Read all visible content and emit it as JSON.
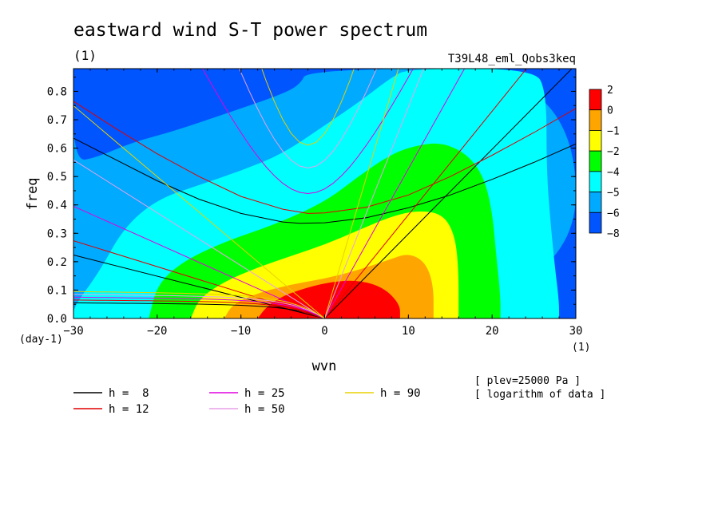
{
  "chart_data": {
    "type": "heatmap",
    "title": "eastward wind S-T power spectrum",
    "subtitle_left": "(1)",
    "subtitle_right": "T39L48_eml_Qobs3keq",
    "xlabel": "wvn",
    "ylabel": "freq",
    "x_unit": "(1)",
    "y_unit": "(day-1)",
    "xlim": [
      -30,
      30
    ],
    "ylim": [
      0,
      0.88
    ],
    "x_ticks": [
      -30,
      -20,
      -10,
      0,
      10,
      20,
      30
    ],
    "y_ticks": [
      0.0,
      0.1,
      0.2,
      0.3,
      0.4,
      0.5,
      0.6,
      0.7,
      0.8
    ],
    "grid": false,
    "colorbar": {
      "labels": [
        "2",
        "0",
        "-1",
        "-2",
        "-4",
        "-5",
        "-6",
        "-8"
      ],
      "levels": [
        {
          "range": "0 to 2",
          "color": "#ff0000"
        },
        {
          "range": "-1 to 0",
          "color": "#ffa500"
        },
        {
          "range": "-2 to -1",
          "color": "#ffff00"
        },
        {
          "range": "-4 to -2",
          "color": "#00ff00"
        },
        {
          "range": "-5 to -4",
          "color": "#00ffff"
        },
        {
          "range": "-6 to -5",
          "color": "#00aaff"
        },
        {
          "range": "-8 to -6",
          "color": "#0055ff"
        }
      ]
    },
    "contour_regions": [
      {
        "level": "-6 to -5",
        "color": "#00aaff",
        "points": [
          [
            -30,
            0.88
          ],
          [
            -30,
            0.55
          ],
          [
            -27,
            0.57
          ],
          [
            -23,
            0.62
          ],
          [
            -18,
            0.66
          ],
          [
            -12,
            0.72
          ],
          [
            -6,
            0.78
          ],
          [
            -3,
            0.82
          ],
          [
            -2,
            0.88
          ],
          [
            30,
            0.88
          ],
          [
            30,
            0.0
          ],
          [
            -30,
            0.0
          ]
        ]
      },
      {
        "level": "-5 to -4",
        "color": "#00ffff",
        "points": [
          [
            -30,
            0.0
          ],
          [
            -30,
            0.04
          ],
          [
            -27,
            0.16
          ],
          [
            -24,
            0.32
          ],
          [
            -20,
            0.42
          ],
          [
            -15,
            0.47
          ],
          [
            -10,
            0.52
          ],
          [
            -5,
            0.58
          ],
          [
            0,
            0.68
          ],
          [
            4,
            0.76
          ],
          [
            8,
            0.85
          ],
          [
            10,
            0.88
          ],
          [
            25,
            0.88
          ],
          [
            26.5,
            0.8
          ],
          [
            26.5,
            0.52
          ],
          [
            27,
            0.33
          ],
          [
            27.5,
            0.18
          ],
          [
            28,
            0.06
          ],
          [
            28,
            0.0
          ]
        ]
      },
      {
        "level": "-4 to -2",
        "color": "#00ff00",
        "points": [
          [
            -21,
            0.0
          ],
          [
            -20,
            0.12
          ],
          [
            -17,
            0.2
          ],
          [
            -12,
            0.27
          ],
          [
            -6,
            0.33
          ],
          [
            0,
            0.41
          ],
          [
            4,
            0.5
          ],
          [
            8,
            0.58
          ],
          [
            11,
            0.61
          ],
          [
            14,
            0.62
          ],
          [
            17,
            0.58
          ],
          [
            19,
            0.5
          ],
          [
            20,
            0.38
          ],
          [
            20.5,
            0.22
          ],
          [
            21,
            0.08
          ],
          [
            21,
            0.0
          ]
        ]
      },
      {
        "level": "-2 to -1",
        "color": "#ffff00",
        "points": [
          [
            -16,
            0.0
          ],
          [
            -15,
            0.07
          ],
          [
            -12,
            0.13
          ],
          [
            -8,
            0.18
          ],
          [
            -4,
            0.22
          ],
          [
            0,
            0.26
          ],
          [
            4,
            0.31
          ],
          [
            8,
            0.36
          ],
          [
            11,
            0.38
          ],
          [
            14,
            0.37
          ],
          [
            15.5,
            0.3
          ],
          [
            16,
            0.18
          ],
          [
            16,
            0.0
          ]
        ]
      },
      {
        "level": "-1 to 0",
        "color": "#ffa500",
        "points": [
          [
            -12,
            0.0
          ],
          [
            -11,
            0.05
          ],
          [
            -8,
            0.09
          ],
          [
            -4,
            0.12
          ],
          [
            0,
            0.14
          ],
          [
            4,
            0.17
          ],
          [
            8,
            0.21
          ],
          [
            10,
            0.23
          ],
          [
            12,
            0.2
          ],
          [
            13,
            0.12
          ],
          [
            13,
            0.0
          ]
        ]
      },
      {
        "level": "0 to 2",
        "color": "#ff0000",
        "points": [
          [
            -8,
            0.0
          ],
          [
            -7,
            0.04
          ],
          [
            -5,
            0.08
          ],
          [
            -2,
            0.11
          ],
          [
            1,
            0.13
          ],
          [
            4,
            0.135
          ],
          [
            7,
            0.11
          ],
          [
            9,
            0.05
          ],
          [
            9,
            0.0
          ]
        ]
      }
    ],
    "series": [
      {
        "name": "h =  8",
        "color": "#000000"
      },
      {
        "name": "h = 12",
        "color": "#e00000"
      },
      {
        "name": "h = 25",
        "color": "#e000e0"
      },
      {
        "name": "h = 50",
        "color": "#e8a0e8"
      },
      {
        "name": "h = 90",
        "color": "#e8d000"
      }
    ],
    "dispersion_curves": [
      {
        "h": 8,
        "color": "#000000",
        "kelvin_slope": 0.0298,
        "rossby_plateau": 0.055,
        "ig_min": 0.335,
        "ig_points": [
          [
            -30,
            0.635
          ],
          [
            -25,
            0.56
          ],
          [
            -20,
            0.485
          ],
          [
            -15,
            0.42
          ],
          [
            -10,
            0.37
          ],
          [
            -5,
            0.34
          ],
          [
            -3,
            0.335
          ],
          [
            0,
            0.337
          ],
          [
            5,
            0.355
          ],
          [
            10,
            0.39
          ],
          [
            15,
            0.435
          ],
          [
            20,
            0.49
          ],
          [
            25,
            0.55
          ],
          [
            30,
            0.615
          ]
        ]
      },
      {
        "h": 12,
        "color": "#e00000",
        "kelvin_slope": 0.0365,
        "rossby_plateau": 0.065,
        "ig_min": 0.37,
        "ig_points": [
          [
            -30,
            0.765
          ],
          [
            -25,
            0.67
          ],
          [
            -20,
            0.58
          ],
          [
            -15,
            0.5
          ],
          [
            -10,
            0.43
          ],
          [
            -5,
            0.385
          ],
          [
            -2,
            0.37
          ],
          [
            0,
            0.372
          ],
          [
            5,
            0.392
          ],
          [
            10,
            0.435
          ],
          [
            15,
            0.5
          ],
          [
            20,
            0.575
          ],
          [
            25,
            0.655
          ],
          [
            30,
            0.74
          ]
        ]
      },
      {
        "h": 25,
        "color": "#e000e0",
        "kelvin_slope": 0.0527,
        "rossby_plateau": 0.075,
        "ig_min": 0.44
      },
      {
        "h": 50,
        "color": "#e8a0e8",
        "kelvin_slope": 0.0745,
        "rossby_plateau": 0.085,
        "ig_min": 0.53
      },
      {
        "h": 90,
        "color": "#e8d000",
        "kelvin_slope": 0.0999,
        "rossby_plateau": 0.095,
        "ig_min": 0.61
      }
    ],
    "annotations": [
      "[ plev=25000 Pa ]",
      "[ logarithm of data ]"
    ]
  }
}
